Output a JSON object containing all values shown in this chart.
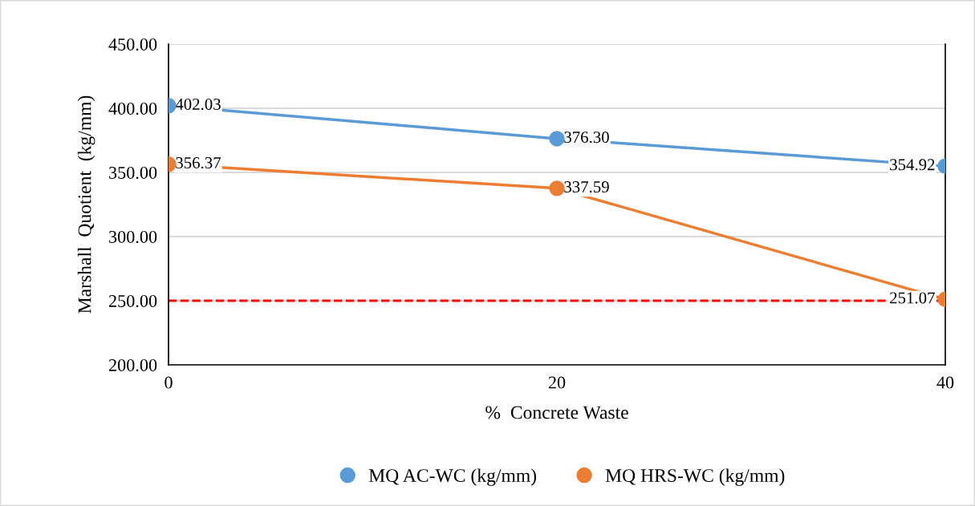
{
  "chart_data": {
    "type": "line",
    "xlabel": "%  Concrete Waste",
    "ylabel": "Marshall  Quotient  (kg/mm)",
    "x": [
      0,
      20,
      40
    ],
    "series": [
      {
        "name": "MQ AC-WC (kg/mm)",
        "color": "#5b9bd5",
        "values": [
          402.03,
          376.3,
          354.92
        ],
        "value_labels": [
          "402.03",
          "376.30",
          "354.92"
        ]
      },
      {
        "name": "MQ HRS-WC (kg/mm)",
        "color": "#ed7d31",
        "values": [
          356.37,
          337.59,
          251.07
        ],
        "value_labels": [
          "356.37",
          "337.59",
          "251.07"
        ]
      }
    ],
    "xlim": [
      0,
      40
    ],
    "xticks": [
      0,
      20,
      40
    ],
    "ylim": [
      200,
      450
    ],
    "yticks": [
      {
        "value": 200,
        "label": "200.00"
      },
      {
        "value": 250,
        "label": "250.00"
      },
      {
        "value": 300,
        "label": "300.00"
      },
      {
        "value": 350,
        "label": "350.00"
      },
      {
        "value": 400,
        "label": "400.00"
      },
      {
        "value": 450,
        "label": "450.00"
      }
    ],
    "ref_lines": [
      {
        "axis": "y",
        "value": 250,
        "color": "#ff0000",
        "line_style": "dashed"
      }
    ],
    "grid": "y",
    "legend": "bottom",
    "marker": "circle",
    "line_style": "solid"
  }
}
